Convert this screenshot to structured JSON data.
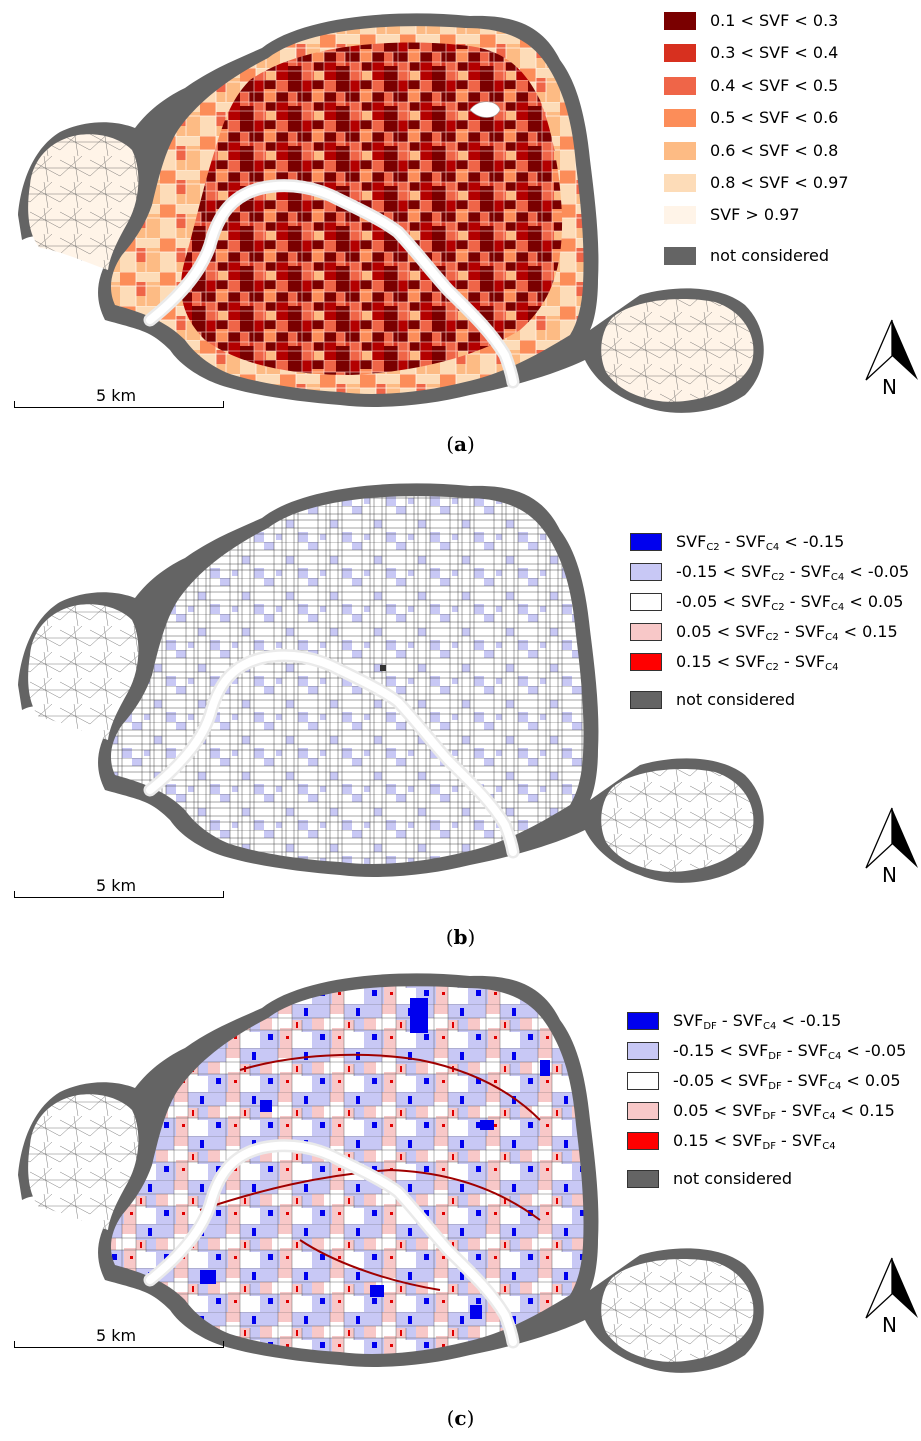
{
  "panels": [
    {
      "id": "a",
      "caption_letter": "a",
      "scale_label": "5 km",
      "north_label": "N",
      "legend": [
        {
          "color": "#7a0000",
          "label": "0.1 < SVF < 0.3"
        },
        {
          "color": "#d7301f",
          "label": "0.3 < SVF < 0.4"
        },
        {
          "color": "#ef6548",
          "label": "0.4 < SVF < 0.5"
        },
        {
          "color": "#fc8d59",
          "label": "0.5 < SVF < 0.6"
        },
        {
          "color": "#fdbb84",
          "label": "0.6 < SVF < 0.8"
        },
        {
          "color": "#fddcb8",
          "label": "0.8 < SVF < 0.97"
        },
        {
          "color": "#fff4e8",
          "label": "SVF > 0.97"
        },
        {
          "color": "#646464",
          "label": "not considered"
        }
      ]
    },
    {
      "id": "b",
      "caption_letter": "b",
      "scale_label": "5 km",
      "north_label": "N",
      "legend": [
        {
          "color": "#0000ee",
          "label": "SVF<sub>C2</sub> - SVF<sub>C4</sub> < -0.15"
        },
        {
          "color": "#c8c8f5",
          "label": "-0.15 < SVF<sub>C2</sub> - SVF<sub>C4</sub> < -0.05"
        },
        {
          "color": "#ffffff",
          "label": "-0.05 < SVF<sub>C2</sub> - SVF<sub>C4</sub> < 0.05"
        },
        {
          "color": "#f8c8c8",
          "label": "0.05 < SVF<sub>C2</sub> - SVF<sub>C4</sub> < 0.15"
        },
        {
          "color": "#ff0000",
          "label": "0.15 < SVF<sub>C2</sub> - SVF<sub>C4</sub>"
        },
        {
          "color": "#646464",
          "label": "not considered"
        }
      ]
    },
    {
      "id": "c",
      "caption_letter": "c",
      "scale_label": "5 km",
      "north_label": "N",
      "legend": [
        {
          "color": "#0000ee",
          "label": "SVF<sub>DF</sub> - SVF<sub>C4</sub> < -0.15"
        },
        {
          "color": "#c8c8f5",
          "label": "-0.15 < SVF<sub>DF</sub> - SVF<sub>C4</sub> < -0.05"
        },
        {
          "color": "#ffffff",
          "label": "-0.05 < SVF<sub>DF</sub> - SVF<sub>C4</sub> < 0.05"
        },
        {
          "color": "#f8c8c8",
          "label": "0.05 < SVF<sub>DF</sub> - SVF<sub>C4</sub> < 0.15"
        },
        {
          "color": "#ff0000",
          "label": "0.15 < SVF<sub>DF</sub> - SVF<sub>C4</sub>"
        },
        {
          "color": "#646464",
          "label": "not considered"
        }
      ]
    }
  ],
  "colors": {
    "border_gray": "#646464",
    "river": "#f4f4f4",
    "streets": "#ffffff"
  }
}
